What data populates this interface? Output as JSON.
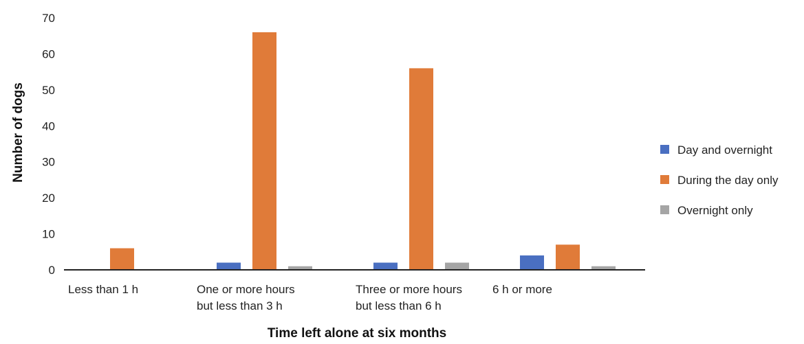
{
  "chart_data": {
    "type": "bar",
    "title": "",
    "xlabel": "Time left alone at six months",
    "ylabel": "Number of dogs",
    "ylim": [
      0,
      70
    ],
    "yticks": [
      0,
      10,
      20,
      30,
      40,
      50,
      60,
      70
    ],
    "grid": false,
    "legend_position": "right",
    "categories": [
      [
        "Less than 1 h"
      ],
      [
        "One or more hours",
        "but less than 3 h"
      ],
      [
        "Three or more hours",
        "but less than 6 h"
      ],
      [
        "6 h or more"
      ]
    ],
    "series": [
      {
        "name": "Day and overnight",
        "color": "#4a6fc1",
        "values": [
          0,
          2,
          2,
          4
        ]
      },
      {
        "name": "During the day only",
        "color": "#e07b39",
        "values": [
          6,
          66,
          56,
          7
        ]
      },
      {
        "name": "Overnight only",
        "color": "#a5a5a5",
        "values": [
          0,
          1,
          2,
          1
        ]
      }
    ]
  }
}
